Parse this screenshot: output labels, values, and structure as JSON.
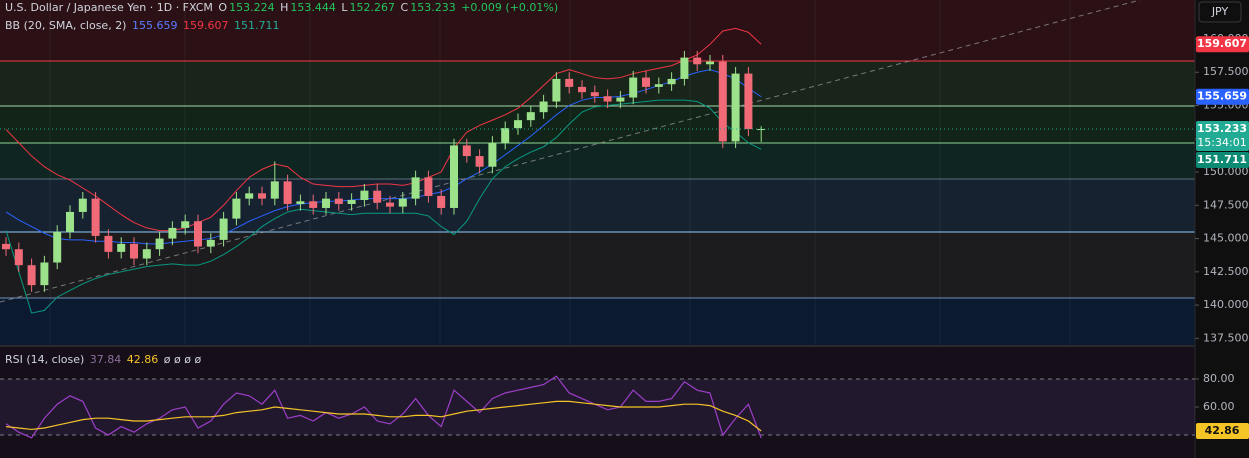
{
  "chart_data": [
    {
      "type": "candlestick",
      "title": "U.S. Dollar / Japanese Yen · 1D · FXCM",
      "ohlc_labels": [
        "O",
        "H",
        "L",
        "C"
      ],
      "change": "+0.009 (+0.01%)",
      "indicator": "BB (20, SMA, close, 2)",
      "currency": "JPY",
      "countdown": "15:34:01",
      "up_color": "#9be28a",
      "down_color": "#f06a78",
      "open": [
        144.6,
        144.2,
        143.0,
        141.5,
        143.2,
        145.5,
        147.0,
        148.0,
        145.2,
        144.0,
        144.6,
        143.5,
        144.2,
        145.0,
        145.8,
        146.3,
        144.4,
        144.9,
        146.5,
        148.0,
        148.4,
        148.0,
        149.3,
        147.6,
        147.8,
        147.3,
        148.0,
        147.6,
        147.9,
        148.6,
        147.7,
        147.4,
        148.0,
        149.6,
        148.2,
        147.3,
        152.0,
        151.2,
        150.4,
        152.2,
        153.3,
        153.9,
        154.5,
        155.3,
        157.0,
        156.4,
        156.0,
        155.7,
        155.3,
        155.6,
        157.1,
        156.4,
        156.6,
        157.0,
        158.6,
        158.1,
        158.3,
        152.3,
        157.4,
        153.224
      ],
      "high": [
        145.1,
        144.7,
        143.5,
        143.7,
        146.0,
        147.5,
        148.5,
        148.5,
        145.7,
        145.1,
        145.1,
        144.7,
        145.5,
        146.3,
        146.8,
        146.8,
        145.4,
        147.0,
        148.5,
        148.9,
        148.9,
        150.8,
        149.8,
        148.3,
        148.3,
        148.5,
        148.5,
        148.4,
        149.1,
        149.1,
        148.2,
        148.5,
        150.1,
        150.1,
        148.7,
        152.5,
        152.5,
        151.7,
        152.7,
        153.8,
        154.4,
        155.0,
        155.8,
        157.5,
        157.5,
        156.9,
        156.5,
        156.2,
        156.1,
        157.6,
        157.6,
        157.1,
        157.5,
        159.1,
        159.1,
        158.8,
        158.8,
        157.9,
        157.9,
        153.444
      ],
      "low": [
        143.7,
        142.5,
        141.0,
        141.0,
        142.7,
        145.0,
        146.5,
        144.7,
        143.5,
        143.5,
        143.0,
        143.0,
        143.7,
        144.5,
        145.3,
        143.9,
        143.9,
        144.4,
        146.0,
        147.5,
        147.5,
        147.5,
        147.1,
        147.1,
        146.8,
        146.8,
        147.1,
        147.1,
        147.4,
        147.2,
        146.9,
        146.9,
        147.5,
        147.7,
        146.8,
        146.8,
        150.7,
        149.9,
        149.9,
        151.7,
        152.8,
        153.4,
        154.0,
        154.8,
        155.9,
        155.5,
        155.2,
        154.8,
        154.8,
        155.1,
        155.9,
        155.9,
        156.1,
        156.5,
        157.6,
        157.6,
        151.8,
        151.8,
        152.7,
        152.267
      ],
      "close": [
        144.2,
        143.0,
        141.5,
        143.2,
        145.5,
        147.0,
        148.0,
        145.2,
        144.0,
        144.6,
        143.5,
        144.2,
        145.0,
        145.8,
        146.3,
        144.4,
        144.9,
        146.5,
        148.0,
        148.4,
        148.0,
        149.3,
        147.6,
        147.8,
        147.3,
        148.0,
        147.6,
        147.9,
        148.6,
        147.7,
        147.4,
        148.0,
        149.6,
        148.2,
        147.3,
        152.0,
        151.2,
        150.4,
        152.2,
        153.3,
        153.9,
        154.5,
        155.3,
        157.0,
        156.4,
        156.0,
        155.7,
        155.3,
        155.6,
        157.1,
        156.4,
        156.6,
        157.0,
        158.6,
        158.1,
        158.3,
        152.3,
        157.4,
        153.224,
        153.233
      ],
      "bands": {
        "basis": {
          "color": "#2962ff",
          "values": [
            147.0,
            146.4,
            145.9,
            145.4,
            145.0,
            144.9,
            144.9,
            144.8,
            144.8,
            144.7,
            144.7,
            144.6,
            144.6,
            144.7,
            144.8,
            144.9,
            145.0,
            145.3,
            145.8,
            146.3,
            146.7,
            147.1,
            147.4,
            147.6,
            147.7,
            147.8,
            147.8,
            147.9,
            148.0,
            148.0,
            148.0,
            148.0,
            148.1,
            148.3,
            148.5,
            148.9,
            149.5,
            150.0,
            150.6,
            151.3,
            152.0,
            152.7,
            153.5,
            154.3,
            155.0,
            155.4,
            155.6,
            155.6,
            155.7,
            155.9,
            156.2,
            156.5,
            156.8,
            157.2,
            157.5,
            157.7,
            157.4,
            157.0,
            156.3,
            155.659
          ]
        },
        "upper": {
          "color": "#f23645",
          "values": [
            153.2,
            152.2,
            151.2,
            150.4,
            149.8,
            149.4,
            148.8,
            148.2,
            147.5,
            146.8,
            146.2,
            145.8,
            145.6,
            145.6,
            145.8,
            146.2,
            146.6,
            147.5,
            148.6,
            149.6,
            150.2,
            150.6,
            150.4,
            149.6,
            149.1,
            149.0,
            148.9,
            148.9,
            149.0,
            149.1,
            149.1,
            149.0,
            149.2,
            149.6,
            150.0,
            151.8,
            153.0,
            153.5,
            153.9,
            154.3,
            154.8,
            155.6,
            156.5,
            157.4,
            157.7,
            157.4,
            157.1,
            157.0,
            157.1,
            157.4,
            157.6,
            157.8,
            158.0,
            158.4,
            158.8,
            159.6,
            160.6,
            160.8,
            160.5,
            159.607
          ]
        },
        "lower": {
          "color": "#089981",
          "values": [
            145.6,
            142.5,
            139.4,
            139.6,
            140.6,
            141.1,
            141.6,
            142.0,
            142.3,
            142.5,
            142.7,
            142.9,
            143.0,
            143.1,
            143.0,
            143.0,
            143.3,
            143.8,
            144.4,
            145.1,
            145.9,
            146.5,
            147.0,
            147.2,
            147.1,
            147.0,
            146.9,
            146.8,
            146.9,
            146.9,
            146.9,
            146.9,
            146.9,
            146.7,
            145.9,
            145.3,
            146.3,
            148.0,
            149.5,
            150.4,
            151.0,
            151.5,
            151.9,
            152.6,
            153.6,
            154.5,
            154.9,
            155.0,
            155.1,
            155.2,
            155.3,
            155.4,
            155.4,
            155.4,
            155.3,
            154.8,
            153.7,
            153.0,
            152.2,
            151.711
          ]
        }
      },
      "ylim": [
        137.0,
        162.93
      ],
      "yticks": [
        {
          "value": 137.5,
          "label": "137.500"
        },
        {
          "value": 140,
          "label": "140.000"
        },
        {
          "value": 142.5,
          "label": "142.500"
        },
        {
          "value": 145,
          "label": "145.000"
        },
        {
          "value": 147.5,
          "label": "147.500"
        },
        {
          "value": 150,
          "label": "150.000"
        },
        {
          "value": 152.5,
          "label": "152.500"
        },
        {
          "value": 155,
          "label": "155.000"
        },
        {
          "value": 157.5,
          "label": "157.500"
        },
        {
          "value": 160,
          "label": "160.000"
        }
      ]
    },
    {
      "type": "line",
      "title": "RSI (14, close)",
      "placeholders": "ø ø ø ø",
      "series": [
        {
          "color": "#9c3fc8",
          "values": [
            48,
            42,
            38,
            52,
            62,
            68,
            64,
            45,
            40,
            46,
            42,
            48,
            52,
            58,
            60,
            45,
            50,
            62,
            70,
            68,
            62,
            72,
            52,
            54,
            50,
            56,
            52,
            55,
            60,
            50,
            48,
            55,
            66,
            54,
            46,
            72,
            64,
            56,
            66,
            70,
            72,
            74,
            76,
            82,
            70,
            66,
            62,
            58,
            60,
            72,
            64,
            64,
            66,
            78,
            72,
            70,
            40,
            52,
            62,
            37.84
          ]
        },
        {
          "color": "#f5c426",
          "values": [
            46,
            45,
            44,
            45,
            47,
            49,
            51,
            52,
            52,
            51,
            50,
            50,
            51,
            52,
            53,
            53,
            53,
            54,
            56,
            57,
            58,
            60,
            59,
            58,
            57,
            56,
            55,
            55,
            55,
            54,
            53,
            53,
            54,
            54,
            53,
            55,
            57,
            58,
            59,
            60,
            61,
            62,
            63,
            64,
            64,
            63,
            62,
            61,
            60,
            60,
            60,
            60,
            61,
            62,
            62,
            61,
            57,
            54,
            50,
            42.86
          ]
        }
      ],
      "bands": [
        80,
        40
      ],
      "ylim": [
        23.6,
        102.1
      ],
      "yticks": [
        {
          "value": 80,
          "label": "80.00"
        },
        {
          "value": 60,
          "label": "60.00"
        }
      ]
    }
  ]
}
